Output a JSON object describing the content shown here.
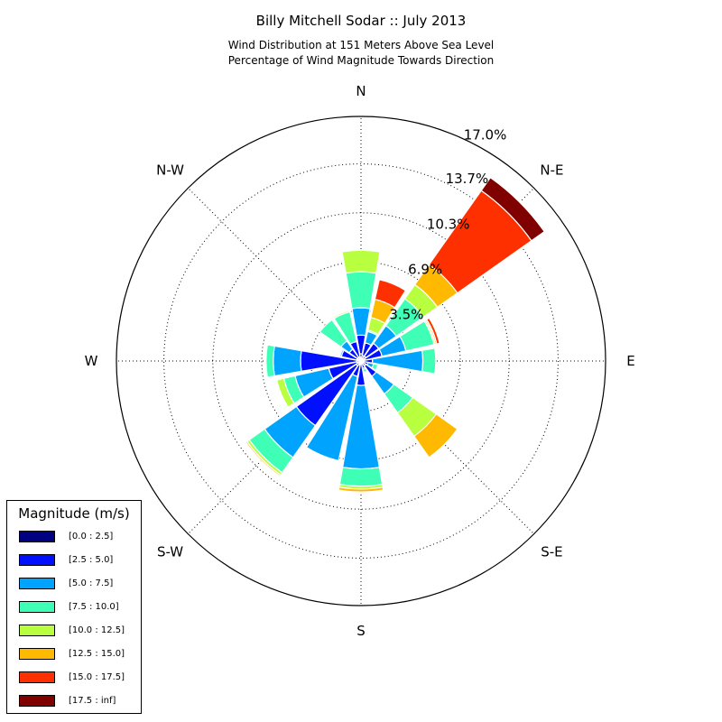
{
  "chart_data": {
    "type": "windrose",
    "title": "Billy Mitchell Sodar :: July 2013",
    "subtitle_line1": "Wind Distribution at 151 Meters Above Sea Level",
    "subtitle_line2": "Percentage of Wind Magnitude Towards Direction",
    "directions": [
      "N",
      "N-E",
      "E",
      "S-E",
      "S",
      "S-W",
      "W",
      "N-W"
    ],
    "ring_values": [
      3.5,
      6.9,
      10.3,
      13.7,
      17.0
    ],
    "ring_labels": [
      "3.5%",
      "6.9%",
      "10.3%",
      "13.7%",
      "17.0%"
    ],
    "rmax": 17.0,
    "grid": true,
    "legend": {
      "title": "Magnitude (m/s)",
      "placement": "lower-left",
      "bins": [
        {
          "label": "[0.0 : 2.5]",
          "color": "#000080"
        },
        {
          "label": "[2.5 : 5.0]",
          "color": "#0010ff"
        },
        {
          "label": "[5.0 : 7.5]",
          "color": "#00a4ff"
        },
        {
          "label": "[7.5 : 10.0]",
          "color": "#3fffb7"
        },
        {
          "label": "[10.0 : 12.5]",
          "color": "#b7ff3f"
        },
        {
          "label": "[12.5 : 15.0]",
          "color": "#ffb900"
        },
        {
          "label": "[15.0 : 17.5]",
          "color": "#ff3000"
        },
        {
          "label": "[17.5 : inf]",
          "color": "#800000"
        }
      ]
    },
    "sectors": [
      {
        "bearing": 0,
        "cumulative": [
          0.5,
          1.8,
          3.7,
          6.2,
          7.7,
          7.7,
          7.7,
          7.7
        ]
      },
      {
        "bearing": 22.5,
        "cumulative": [
          0.4,
          1.3,
          2.1,
          2.2,
          3.1,
          4.4,
          5.8,
          5.8
        ]
      },
      {
        "bearing": 45,
        "cumulative": [
          0.4,
          1.5,
          3.0,
          5.3,
          6.5,
          8.2,
          14.5,
          15.6
        ]
      },
      {
        "bearing": 67.5,
        "cumulative": [
          0.3,
          1.5,
          3.2,
          5.2,
          5.3,
          5.4,
          5.6,
          5.6
        ]
      },
      {
        "bearing": 90,
        "cumulative": [
          0.2,
          0.8,
          4.3,
          5.2,
          5.2,
          5.2,
          5.2,
          5.2
        ]
      },
      {
        "bearing": 112.5,
        "cumulative": [
          0.2,
          0.5,
          0.9,
          1.2,
          1.2,
          1.2,
          1.2,
          1.2
        ]
      },
      {
        "bearing": 135,
        "cumulative": [
          0.4,
          1.3,
          2.8,
          4.4,
          6.4,
          8.2,
          8.2,
          8.2
        ]
      },
      {
        "bearing": 157.5,
        "cumulative": [
          0.2,
          0.5,
          0.6,
          0.8,
          0.8,
          0.8,
          0.8,
          0.8
        ]
      },
      {
        "bearing": 180,
        "cumulative": [
          0.2,
          1.7,
          7.5,
          8.7,
          8.9,
          9.1,
          9.1,
          9.1
        ]
      },
      {
        "bearing": 202.5,
        "cumulative": [
          0.3,
          1.1,
          7.1,
          7.1,
          7.1,
          7.1,
          7.1,
          7.1
        ]
      },
      {
        "bearing": 225,
        "cumulative": [
          0.4,
          5.5,
          8.2,
          9.5,
          9.7,
          9.8,
          9.8,
          9.8
        ]
      },
      {
        "bearing": 247.5,
        "cumulative": [
          0.3,
          2.3,
          4.7,
          5.5,
          6.0,
          6.0,
          6.0,
          6.0
        ]
      },
      {
        "bearing": 270,
        "cumulative": [
          0.3,
          4.2,
          6.1,
          6.6,
          6.6,
          6.6,
          6.6,
          6.6
        ]
      },
      {
        "bearing": 292.5,
        "cumulative": [
          0.3,
          1.4,
          1.5,
          1.5,
          1.5,
          1.5,
          1.5,
          1.5
        ]
      },
      {
        "bearing": 315,
        "cumulative": [
          0.3,
          1.0,
          1.7,
          3.5,
          3.5,
          3.5,
          3.5,
          3.5
        ]
      },
      {
        "bearing": 337.5,
        "cumulative": [
          0.3,
          1.4,
          1.4,
          3.5,
          3.6,
          3.6,
          3.6,
          3.6
        ]
      }
    ]
  }
}
